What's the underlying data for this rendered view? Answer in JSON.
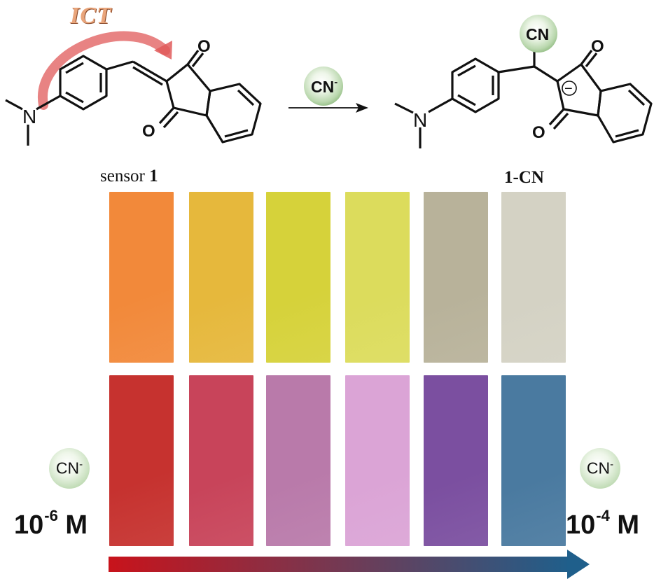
{
  "scheme": {
    "ict_label": "ICT",
    "reagent_label": "CN",
    "reagent_charge": "-",
    "product_cn_label": "CN",
    "atom_n": "N",
    "atom_o": "O",
    "negative_charge": "−"
  },
  "labels": {
    "sensor_prefix": "sensor ",
    "sensor_number": "1",
    "product": "1-CN"
  },
  "strips": {
    "top_row_colors": [
      "#f2893a",
      "#e6b83c",
      "#d6d23a",
      "#dcdc5c",
      "#b8b29a",
      "#d4d2c4"
    ],
    "bottom_row_colors": [
      "#c6322f",
      "#c8445a",
      "#b97aaa",
      "#dba4d6",
      "#7b4fa0",
      "#4a7aa0"
    ]
  },
  "concentration": {
    "left_ion": "CN",
    "right_ion": "CN",
    "ion_charge": "-",
    "left_base": "10",
    "left_exponent": "-6",
    "left_unit": " M",
    "right_base": "10",
    "right_exponent": "-4",
    "right_unit": " M"
  },
  "arrow": {
    "start_color": "#c8131b",
    "end_color": "#1f5f8b"
  }
}
